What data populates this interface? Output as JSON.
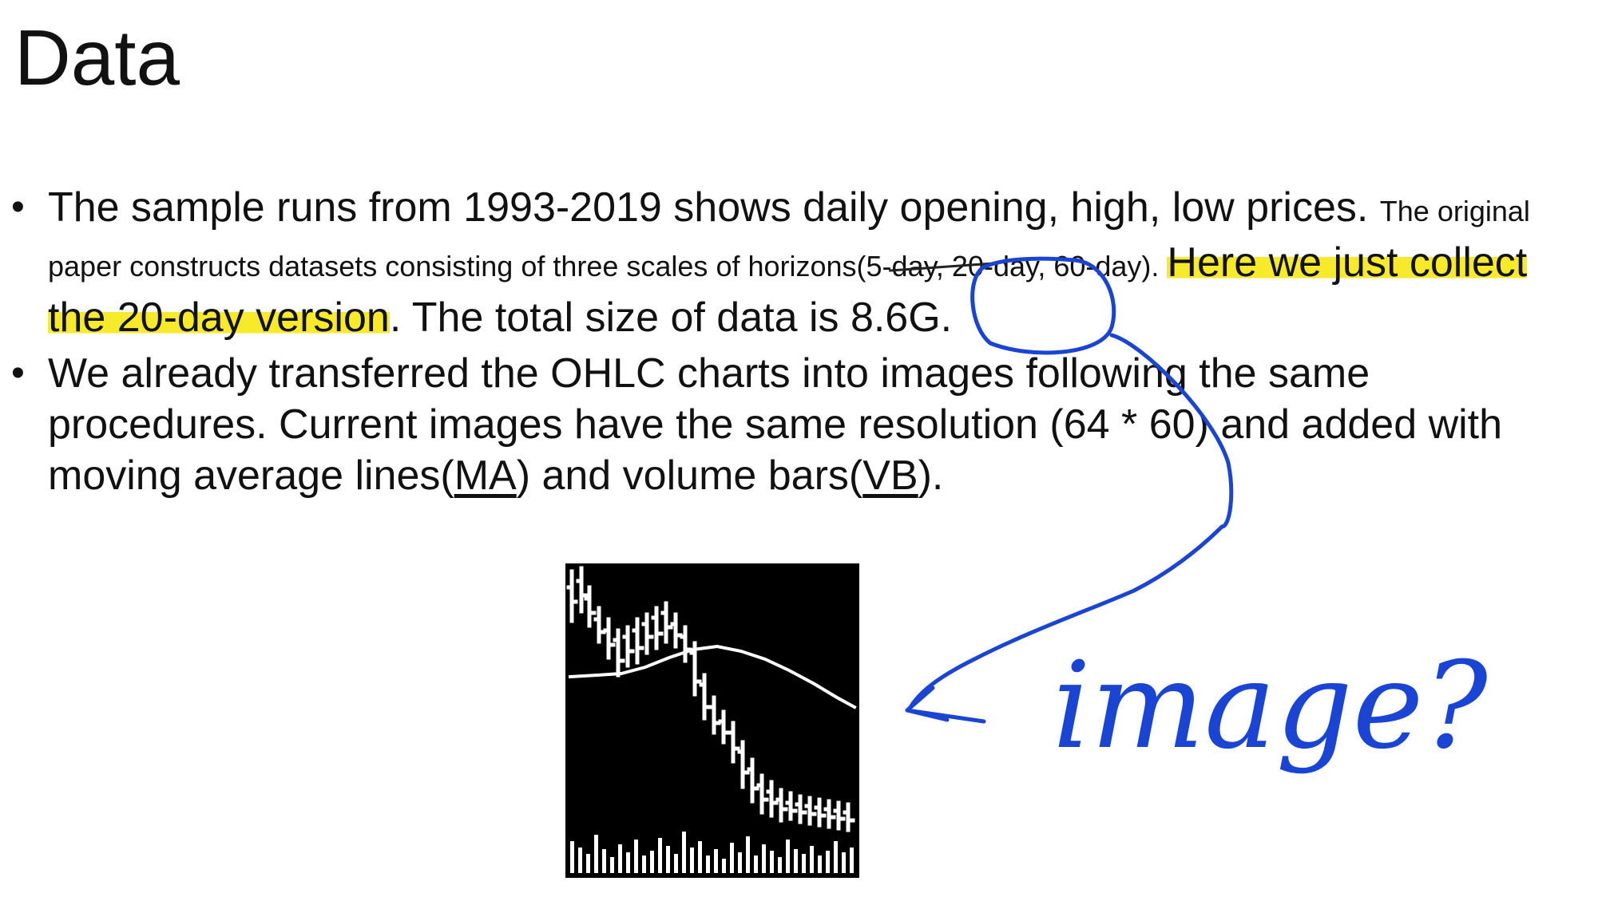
{
  "slide": {
    "title": "Data",
    "bullet1": {
      "seg1": "The sample runs from 1993-2019 shows daily opening, high, low prices. ",
      "seg2": "The original paper constructs datasets consisting of three scales of horizons(5-",
      "seg3": "day, 20-",
      "seg4": "day, 60-day). ",
      "seg5": "Here we just collect the 20-day version",
      "seg6": ". The total size of data is 8.6G."
    },
    "bullet2": {
      "seg1": "We already transferred the OHLC charts into images following the same procedures. Current images have the same resolution (64 * 60) and added with moving average lines(",
      "ma": "MA",
      "seg2": ") and volume bars(",
      "vb": "VB",
      "seg3": ")."
    },
    "annotation": {
      "text": "image?",
      "color": "#1a44d4"
    },
    "highlight_color": "#f6ea2a"
  }
}
